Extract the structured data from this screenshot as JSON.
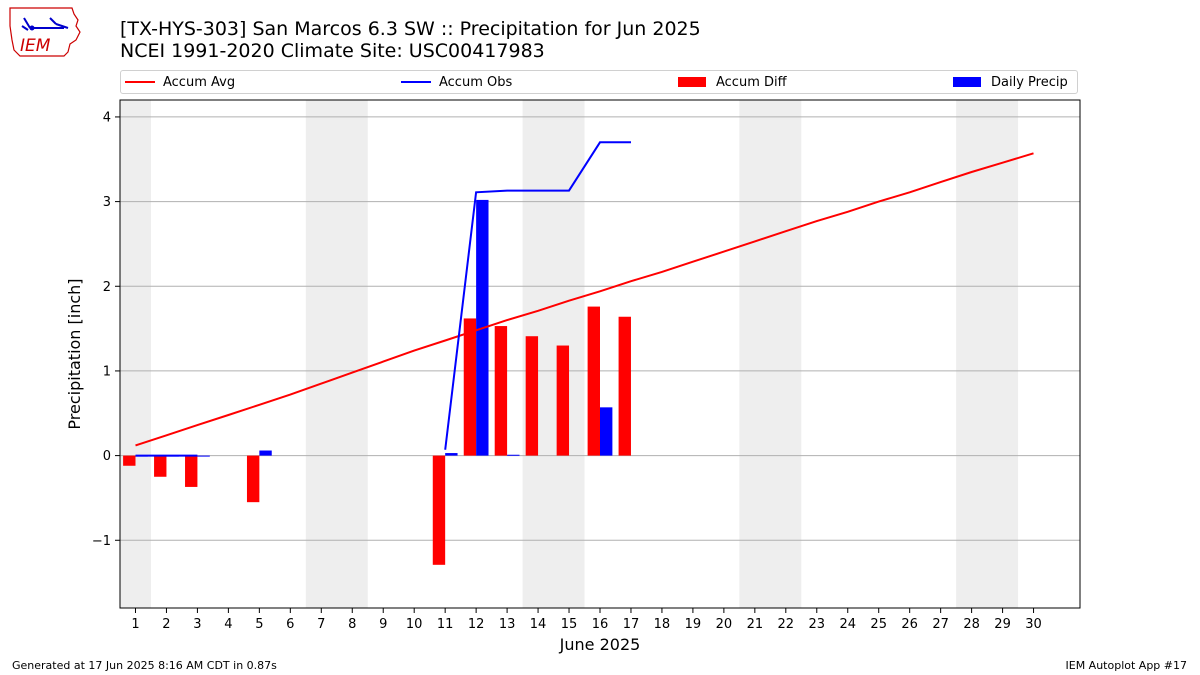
{
  "header": {
    "title_line1": "[TX-HYS-303] San Marcos 6.3 SW :: Precipitation for Jun 2025",
    "title_line2": "NCEI 1991-2020 Climate Site: USC00417983"
  },
  "logo": {
    "text": "IEM",
    "color": "#cc0000"
  },
  "footer": {
    "generated": "Generated at 17 Jun 2025 8:16 AM CDT in 0.87s",
    "app": "IEM Autoplot App #17"
  },
  "colors": {
    "avg": "#ff0000",
    "obs": "#0000ff",
    "diff": "#ff0000",
    "daily": "#0000ff",
    "weekend": "#eeeeee",
    "grid": "#b0b0b0"
  },
  "chart_data": {
    "type": "bar",
    "xlabel": "June 2025",
    "ylabel": "Precipitation [inch]",
    "xlim": [
      0.5,
      31.5
    ],
    "ylim": [
      -1.8,
      4.2
    ],
    "yticks": [
      -1,
      0,
      1,
      2,
      3,
      4
    ],
    "ytick_labels": [
      "−1",
      "0",
      "1",
      "2",
      "3",
      "4"
    ],
    "xticks": [
      1,
      2,
      3,
      4,
      5,
      6,
      7,
      8,
      9,
      10,
      11,
      12,
      13,
      14,
      15,
      16,
      17,
      18,
      19,
      20,
      21,
      22,
      23,
      24,
      25,
      26,
      27,
      28,
      29,
      30
    ],
    "shaded_days": [
      [
        0.5,
        1.5
      ],
      [
        6.5,
        8.5
      ],
      [
        13.5,
        15.5
      ],
      [
        20.5,
        22.5
      ],
      [
        27.5,
        29.5
      ]
    ],
    "grid": "horizontal",
    "legend_placement": "top",
    "legend": [
      "Accum Avg",
      "Accum Obs",
      "Accum Diff",
      "Daily Precip"
    ],
    "series": [
      {
        "name": "Accum Avg",
        "kind": "line",
        "x": [
          1,
          2,
          3,
          4,
          5,
          6,
          7,
          8,
          9,
          10,
          11,
          12,
          13,
          14,
          15,
          16,
          17,
          18,
          19,
          20,
          21,
          22,
          23,
          24,
          25,
          26,
          27,
          28,
          29,
          30
        ],
        "values": [
          0.12,
          0.24,
          0.36,
          0.48,
          0.6,
          0.72,
          0.85,
          0.98,
          1.11,
          1.24,
          1.36,
          1.48,
          1.6,
          1.71,
          1.83,
          1.94,
          2.06,
          2.17,
          2.29,
          2.41,
          2.53,
          2.65,
          2.77,
          2.88,
          3.0,
          3.11,
          3.23,
          3.35,
          3.46,
          3.57
        ]
      },
      {
        "name": "Accum Obs",
        "kind": "line",
        "x": [
          1,
          2,
          3,
          4,
          5,
          6,
          7,
          8,
          9,
          10,
          11,
          12,
          13,
          14,
          15,
          16,
          17
        ],
        "values": [
          0.0,
          0.0,
          0.0,
          null,
          null,
          null,
          null,
          null,
          null,
          null,
          0.07,
          3.11,
          3.13,
          3.13,
          3.13,
          3.7,
          3.7
        ]
      },
      {
        "name": "Accum Diff",
        "kind": "bar",
        "x": [
          1,
          2,
          3,
          5,
          11,
          12,
          13,
          14,
          15,
          16,
          17
        ],
        "values": [
          -0.12,
          -0.25,
          -0.37,
          -0.55,
          -1.29,
          1.62,
          1.53,
          1.41,
          1.3,
          1.76,
          1.64
        ]
      },
      {
        "name": "Daily Precip",
        "kind": "bar",
        "x": [
          1,
          2,
          3,
          5,
          11,
          12,
          13,
          16
        ],
        "values": [
          0.0,
          0.0,
          0.0,
          0.06,
          0.03,
          3.02,
          0.01,
          0.57
        ]
      }
    ]
  }
}
